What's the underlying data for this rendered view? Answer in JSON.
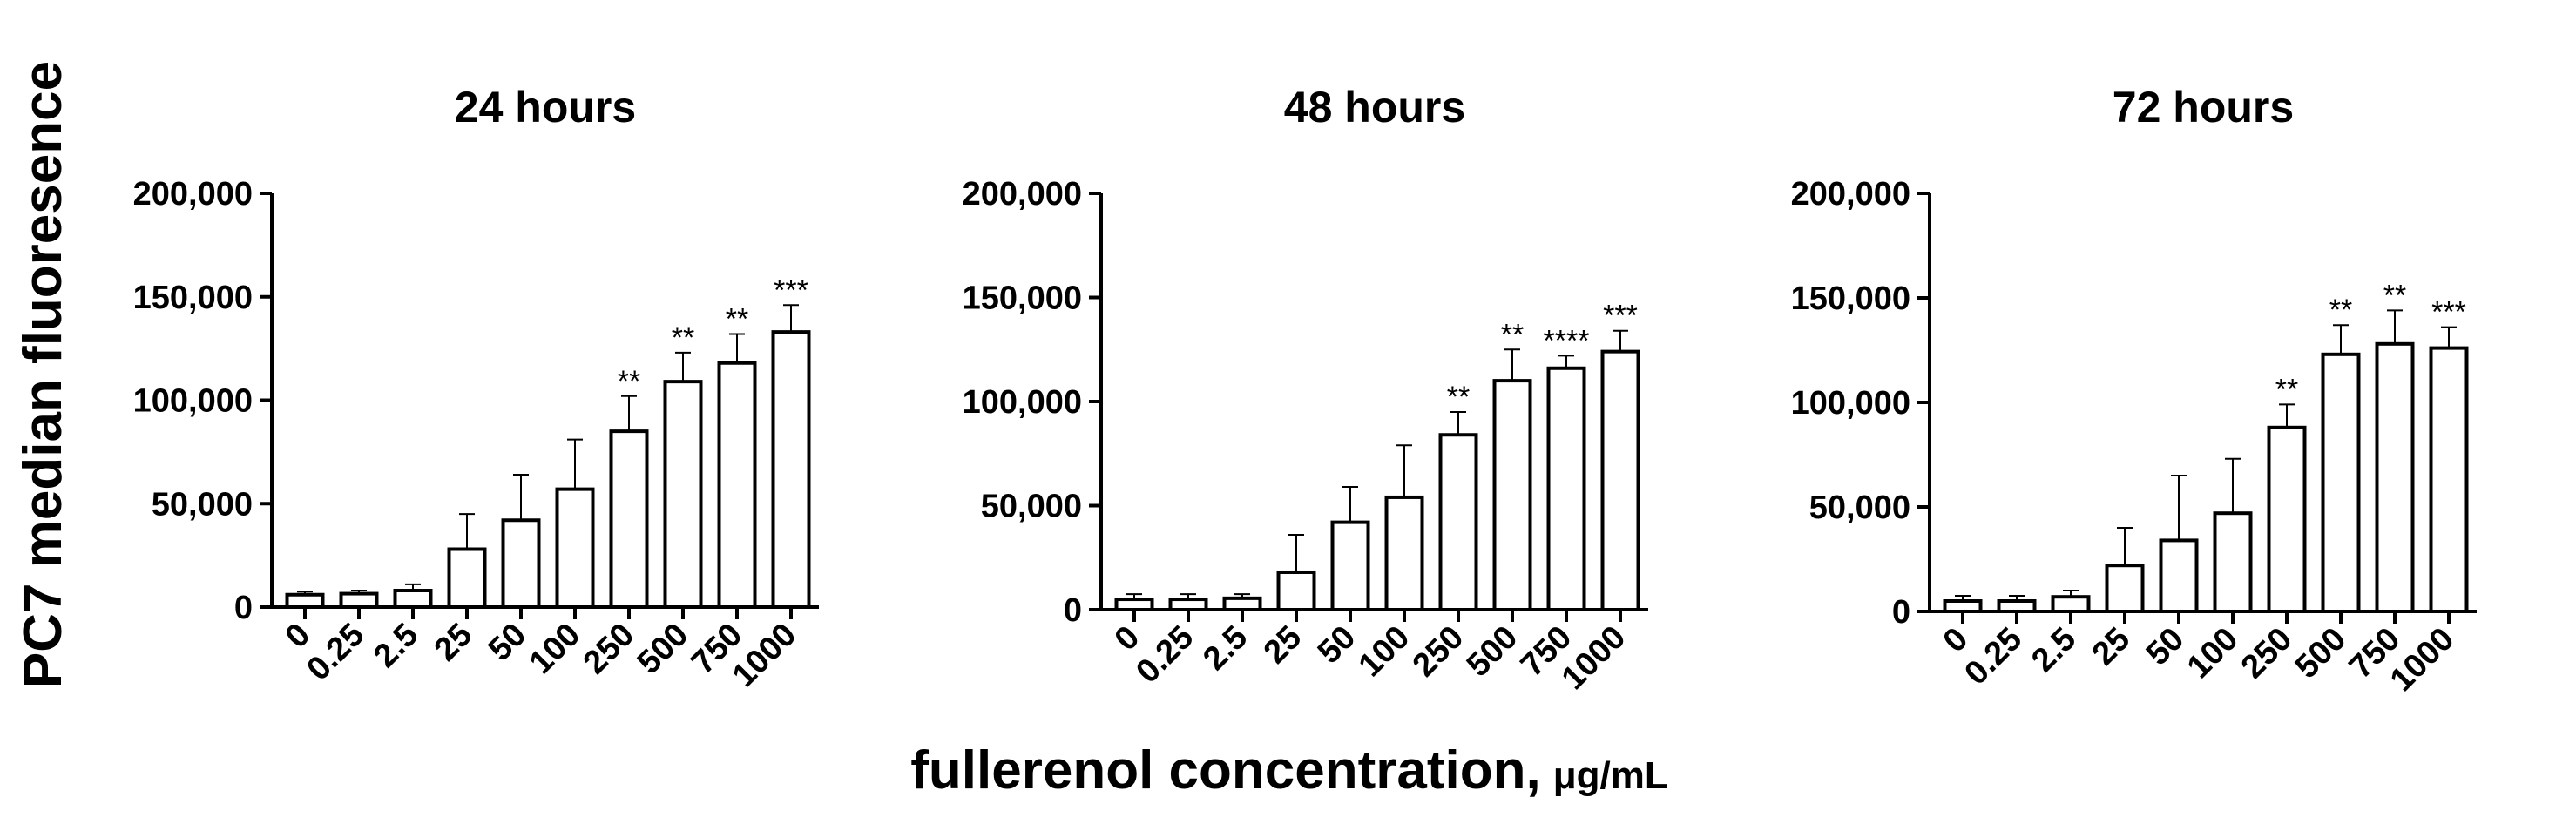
{
  "figure": {
    "ylabel": "PC7 median fluoresence",
    "xlabel": "fullerenol concentration,",
    "xlabel_unit": "μg/mL"
  },
  "chart_data": [
    {
      "type": "bar",
      "title": "24 hours",
      "categories": [
        "0",
        "0.25",
        "2.5",
        "25",
        "50",
        "100",
        "250",
        "500",
        "750",
        "1000"
      ],
      "values": [
        6000,
        6500,
        8000,
        28000,
        42000,
        57000,
        85000,
        109000,
        118000,
        133000
      ],
      "errors": [
        1500,
        1500,
        3000,
        17000,
        22000,
        24000,
        17000,
        14000,
        14000,
        13000
      ],
      "significance": [
        "",
        "",
        "",
        "",
        "",
        "",
        "**",
        "**",
        "**",
        "***"
      ],
      "yticks": [
        "0",
        "50,000",
        "100,000",
        "150,000",
        "200,000"
      ],
      "ylim": [
        0,
        200000
      ]
    },
    {
      "type": "bar",
      "title": "48 hours",
      "categories": [
        "0",
        "0.25",
        "2.5",
        "25",
        "50",
        "100",
        "250",
        "500",
        "750",
        "1000"
      ],
      "values": [
        5000,
        5000,
        5500,
        18000,
        42000,
        54000,
        84000,
        110000,
        116000,
        124000
      ],
      "errors": [
        2500,
        2500,
        2000,
        18000,
        17000,
        25000,
        11000,
        15000,
        6000,
        10000
      ],
      "significance": [
        "",
        "",
        "",
        "",
        "",
        "",
        "**",
        "**",
        "****",
        "***"
      ],
      "yticks": [
        "0",
        "50,000",
        "100,000",
        "150,000",
        "200,000"
      ],
      "ylim": [
        0,
        200000
      ]
    },
    {
      "type": "bar",
      "title": "72 hours",
      "categories": [
        "0",
        "0.25",
        "2.5",
        "25",
        "50",
        "100",
        "250",
        "500",
        "750",
        "1000"
      ],
      "values": [
        5000,
        5000,
        7000,
        22000,
        34000,
        47000,
        88000,
        123000,
        128000,
        126000
      ],
      "errors": [
        2500,
        2500,
        3000,
        18000,
        31000,
        26000,
        11000,
        14000,
        16000,
        10000
      ],
      "significance": [
        "",
        "",
        "",
        "",
        "",
        "",
        "**",
        "**",
        "**",
        "***"
      ],
      "yticks": [
        "0",
        "50,000",
        "100,000",
        "150,000",
        "200,000"
      ],
      "ylim": [
        0,
        200000
      ]
    }
  ]
}
